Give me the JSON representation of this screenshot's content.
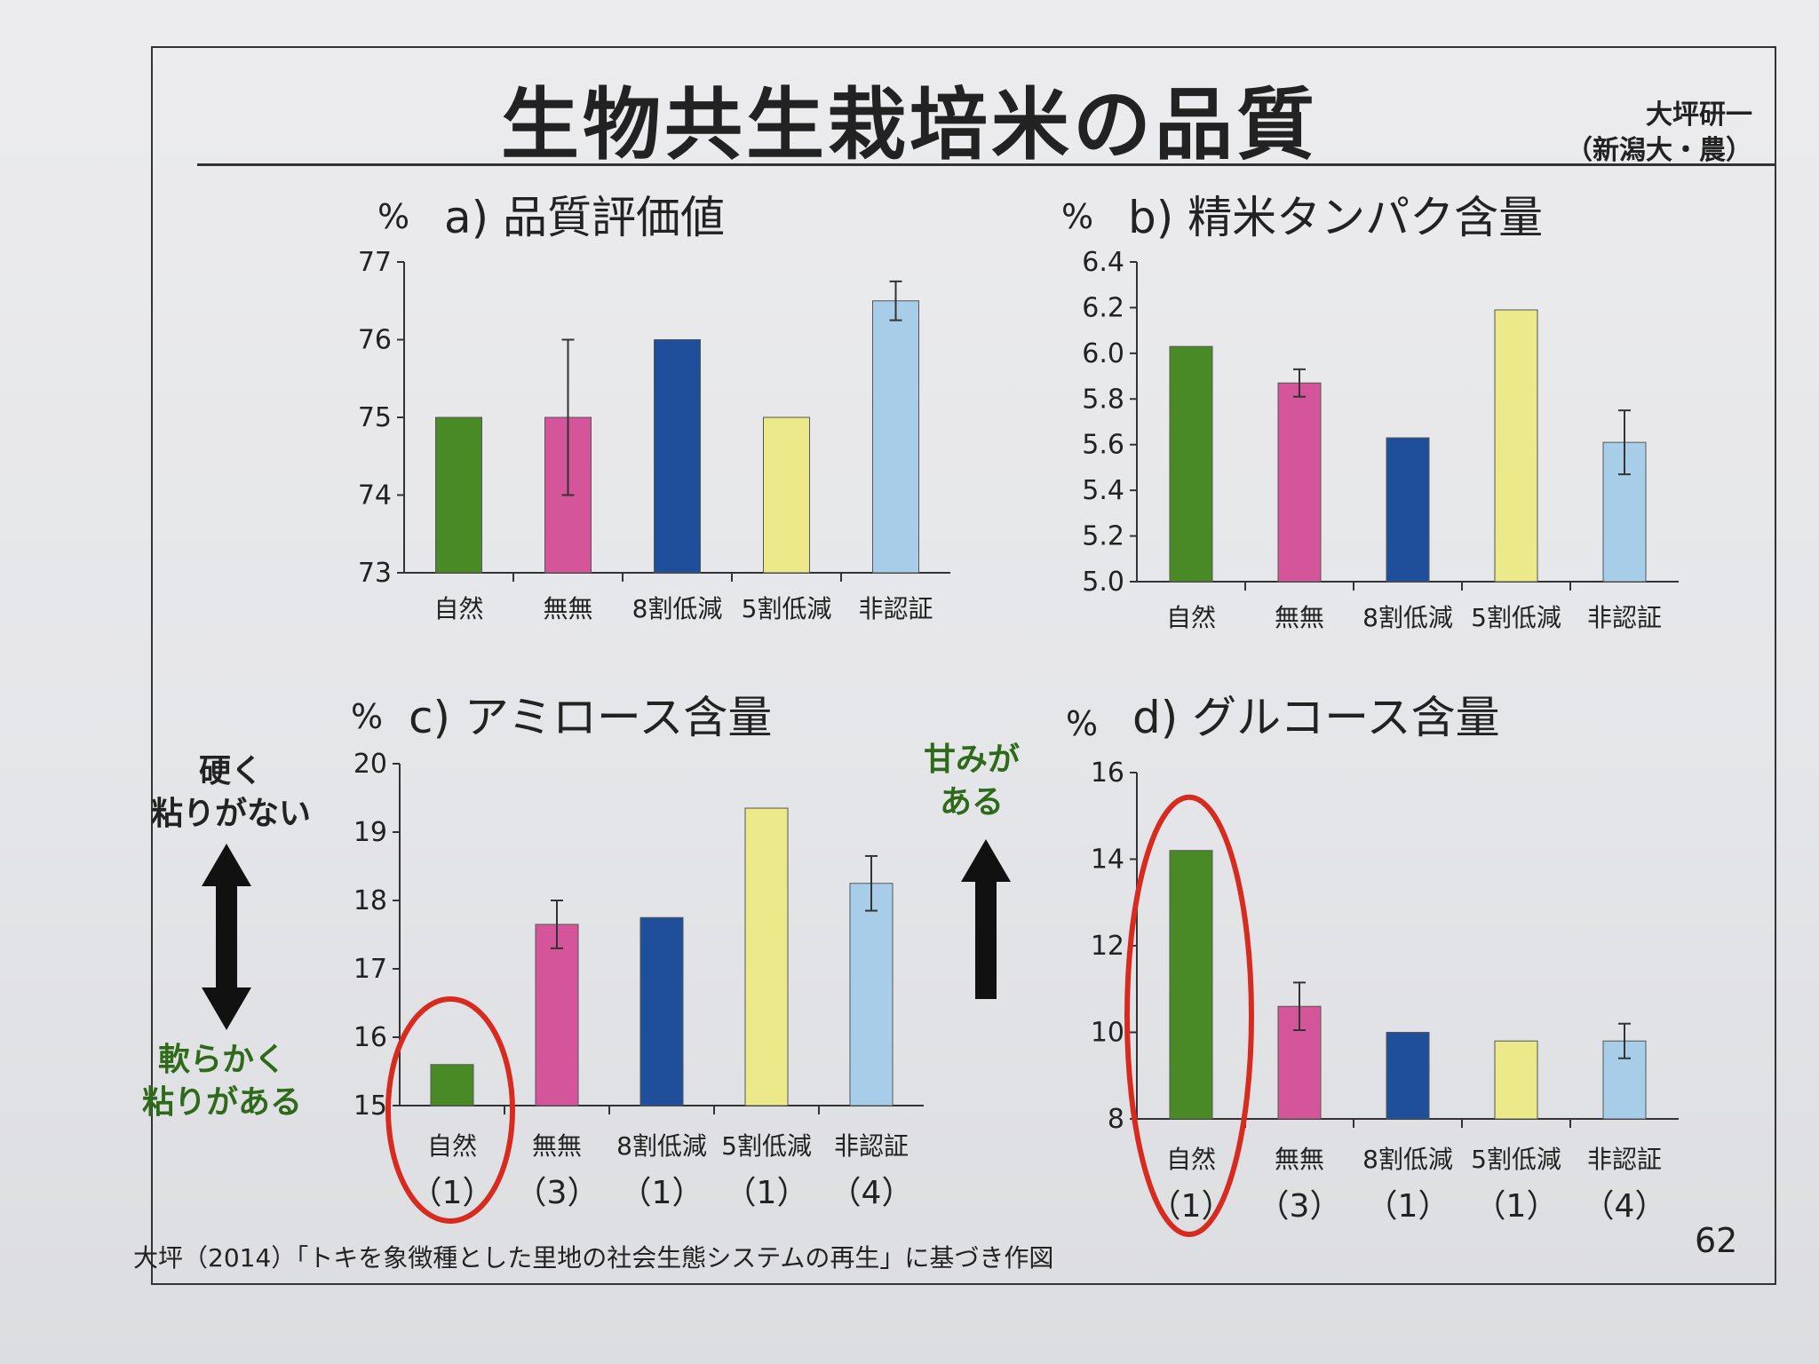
{
  "slide": {
    "title": "生物共生栽培米の品質",
    "author_line1": "大坪研一",
    "author_line2": "（新潟大・農）",
    "footer": "大坪（2014）「トキを象徴種とした里地の社会生態システムの再生」に基づき作図",
    "page_number": "62"
  },
  "annotations": {
    "hard_line1": "硬く",
    "hard_line2": "粘りがない",
    "soft_line1": "軟らかく",
    "soft_line2": "粘りがある",
    "sweet_line1": "甘みが",
    "sweet_line2": "ある"
  },
  "colors": {
    "green": "#4a8a26",
    "pink": "#d5559a",
    "blue": "#1f4f9a",
    "yellow": "#ece98a",
    "lightblue": "#a7cde9",
    "circle": "#d62b1e"
  },
  "chart_data": [
    {
      "type": "bar",
      "title": "a) 品質評価値",
      "ylabel": "%",
      "categories": [
        "自然",
        "無無",
        "8割低減",
        "5割低減",
        "非認証"
      ],
      "sample_sizes": [],
      "values": [
        75.0,
        75.0,
        76.0,
        75.0,
        76.5
      ],
      "error_bars": [
        null,
        1.0,
        null,
        null,
        0.25
      ],
      "ylim": [
        73,
        77
      ],
      "yticks": [
        "73",
        "74",
        "75",
        "76",
        "77"
      ],
      "grid": false
    },
    {
      "type": "bar",
      "title": "b) 精米タンパク含量",
      "ylabel": "%",
      "categories": [
        "自然",
        "無無",
        "8割低減",
        "5割低減",
        "非認証"
      ],
      "sample_sizes": [],
      "values": [
        6.03,
        5.87,
        5.63,
        6.19,
        5.61
      ],
      "error_bars": [
        null,
        0.06,
        null,
        null,
        0.14
      ],
      "ylim": [
        5.0,
        6.4
      ],
      "yticks": [
        "5.0",
        "5.2",
        "5.4",
        "5.6",
        "5.8",
        "6.0",
        "6.2",
        "6.4"
      ],
      "grid": false
    },
    {
      "type": "bar",
      "title": "c) アミロース含量",
      "ylabel": "%",
      "categories": [
        "自然",
        "無無",
        "8割低減",
        "5割低減",
        "非認証"
      ],
      "sample_sizes": [
        "（1）",
        "（3）",
        "（1）",
        "（1）",
        "（4）"
      ],
      "values": [
        15.6,
        17.65,
        17.75,
        19.35,
        18.25
      ],
      "error_bars": [
        null,
        0.35,
        null,
        null,
        0.4
      ],
      "ylim": [
        15,
        20
      ],
      "yticks": [
        "15",
        "16",
        "17",
        "18",
        "19",
        "20"
      ],
      "highlight_index": 0,
      "grid": false
    },
    {
      "type": "bar",
      "title": "d) グルコース含量",
      "ylabel": "%",
      "categories": [
        "自然",
        "無無",
        "8割低減",
        "5割低減",
        "非認証"
      ],
      "sample_sizes": [
        "（1）",
        "（3）",
        "（1）",
        "（1）",
        "（4）"
      ],
      "values": [
        14.2,
        10.6,
        10.0,
        9.8,
        9.8
      ],
      "error_bars": [
        null,
        0.55,
        null,
        null,
        0.4
      ],
      "ylim": [
        8,
        16
      ],
      "yticks": [
        "8",
        "10",
        "12",
        "14",
        "16"
      ],
      "highlight_index": 0,
      "grid": false
    }
  ]
}
